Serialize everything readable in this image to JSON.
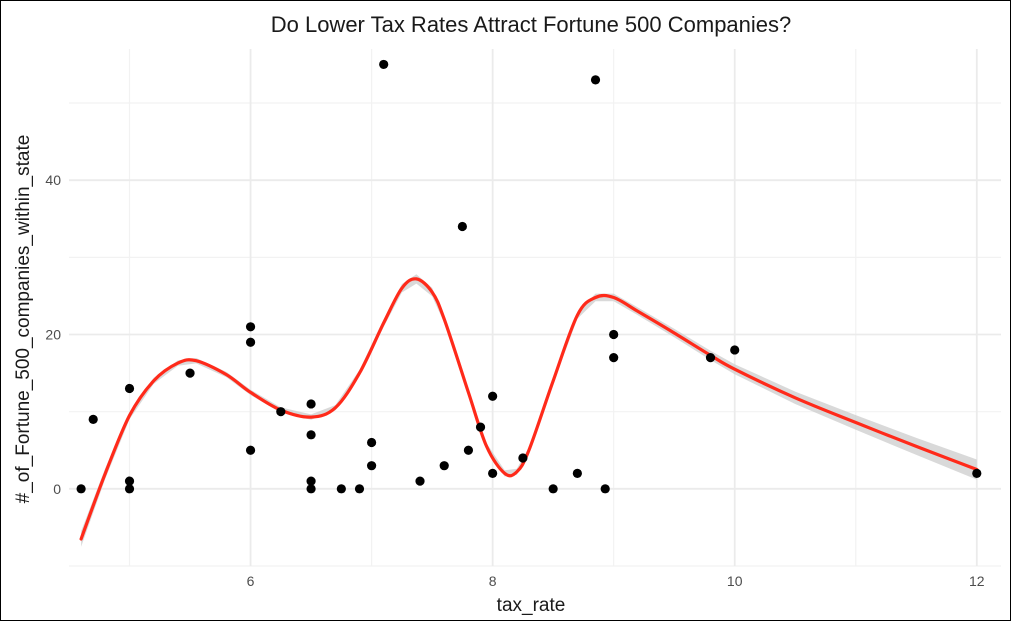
{
  "chart_data": {
    "type": "scatter",
    "title": "Do Lower Tax Rates Attract Fortune 500 Companies?",
    "xlabel": "tax_rate",
    "ylabel": "#_of_Fortune_500_companies_within_state",
    "xlim": [
      4.5,
      12.2
    ],
    "ylim": [
      -10,
      57
    ],
    "x_ticks": [
      6,
      8,
      10,
      12
    ],
    "y_ticks": [
      0,
      20,
      40
    ],
    "grid": true,
    "series": [
      {
        "type": "scatter",
        "color": "#000000",
        "points": [
          [
            4.6,
            0
          ],
          [
            4.7,
            9
          ],
          [
            5.0,
            13
          ],
          [
            5.0,
            1
          ],
          [
            5.0,
            0
          ],
          [
            5.5,
            15
          ],
          [
            6.0,
            21
          ],
          [
            6.0,
            19
          ],
          [
            6.0,
            5
          ],
          [
            6.25,
            10
          ],
          [
            6.5,
            11
          ],
          [
            6.5,
            7
          ],
          [
            6.5,
            1
          ],
          [
            6.5,
            0
          ],
          [
            6.75,
            0
          ],
          [
            6.9,
            0
          ],
          [
            7.0,
            6
          ],
          [
            7.0,
            3
          ],
          [
            7.1,
            55
          ],
          [
            7.4,
            1
          ],
          [
            7.6,
            3
          ],
          [
            7.75,
            34
          ],
          [
            7.8,
            5
          ],
          [
            7.9,
            8
          ],
          [
            8.0,
            12
          ],
          [
            8.0,
            2
          ],
          [
            8.25,
            4
          ],
          [
            8.5,
            0
          ],
          [
            8.7,
            2
          ],
          [
            8.85,
            53
          ],
          [
            8.93,
            0
          ],
          [
            9.0,
            20
          ],
          [
            9.0,
            17
          ],
          [
            9.8,
            17
          ],
          [
            10.0,
            18
          ],
          [
            12.0,
            2
          ]
        ]
      },
      {
        "type": "line",
        "smooth": true,
        "confidence_band": true,
        "color": "#ff2a1a",
        "band_color": "#cccccc",
        "points": [
          [
            4.6,
            -6.5,
            1.0
          ],
          [
            4.8,
            2,
            0.7
          ],
          [
            5.0,
            9.5,
            0.5
          ],
          [
            5.2,
            14,
            0.4
          ],
          [
            5.4,
            16.3,
            0.35
          ],
          [
            5.55,
            16.6,
            0.35
          ],
          [
            5.8,
            14.8,
            0.35
          ],
          [
            6.0,
            12.5,
            0.35
          ],
          [
            6.25,
            10.2,
            0.35
          ],
          [
            6.5,
            9.3,
            0.35
          ],
          [
            6.7,
            10.5,
            0.35
          ],
          [
            6.9,
            15,
            0.4
          ],
          [
            7.1,
            21.5,
            0.5
          ],
          [
            7.25,
            26,
            0.55
          ],
          [
            7.37,
            27.2,
            0.6
          ],
          [
            7.5,
            25.5,
            0.55
          ],
          [
            7.6,
            22,
            0.5
          ],
          [
            7.8,
            12.5,
            0.45
          ],
          [
            7.95,
            5.5,
            0.4
          ],
          [
            8.1,
            2,
            0.4
          ],
          [
            8.2,
            2.2,
            0.4
          ],
          [
            8.3,
            5,
            0.4
          ],
          [
            8.5,
            14,
            0.4
          ],
          [
            8.7,
            22.5,
            0.45
          ],
          [
            8.85,
            24.8,
            0.5
          ],
          [
            9.0,
            24.8,
            0.5
          ],
          [
            9.2,
            23,
            0.5
          ],
          [
            9.5,
            20.2,
            0.55
          ],
          [
            9.8,
            17.3,
            0.6
          ],
          [
            10.0,
            15.5,
            0.65
          ],
          [
            10.5,
            11.8,
            0.8
          ],
          [
            11.0,
            8.6,
            0.95
          ],
          [
            11.5,
            5.5,
            1.1
          ],
          [
            12.0,
            2.5,
            1.3
          ]
        ]
      }
    ]
  }
}
